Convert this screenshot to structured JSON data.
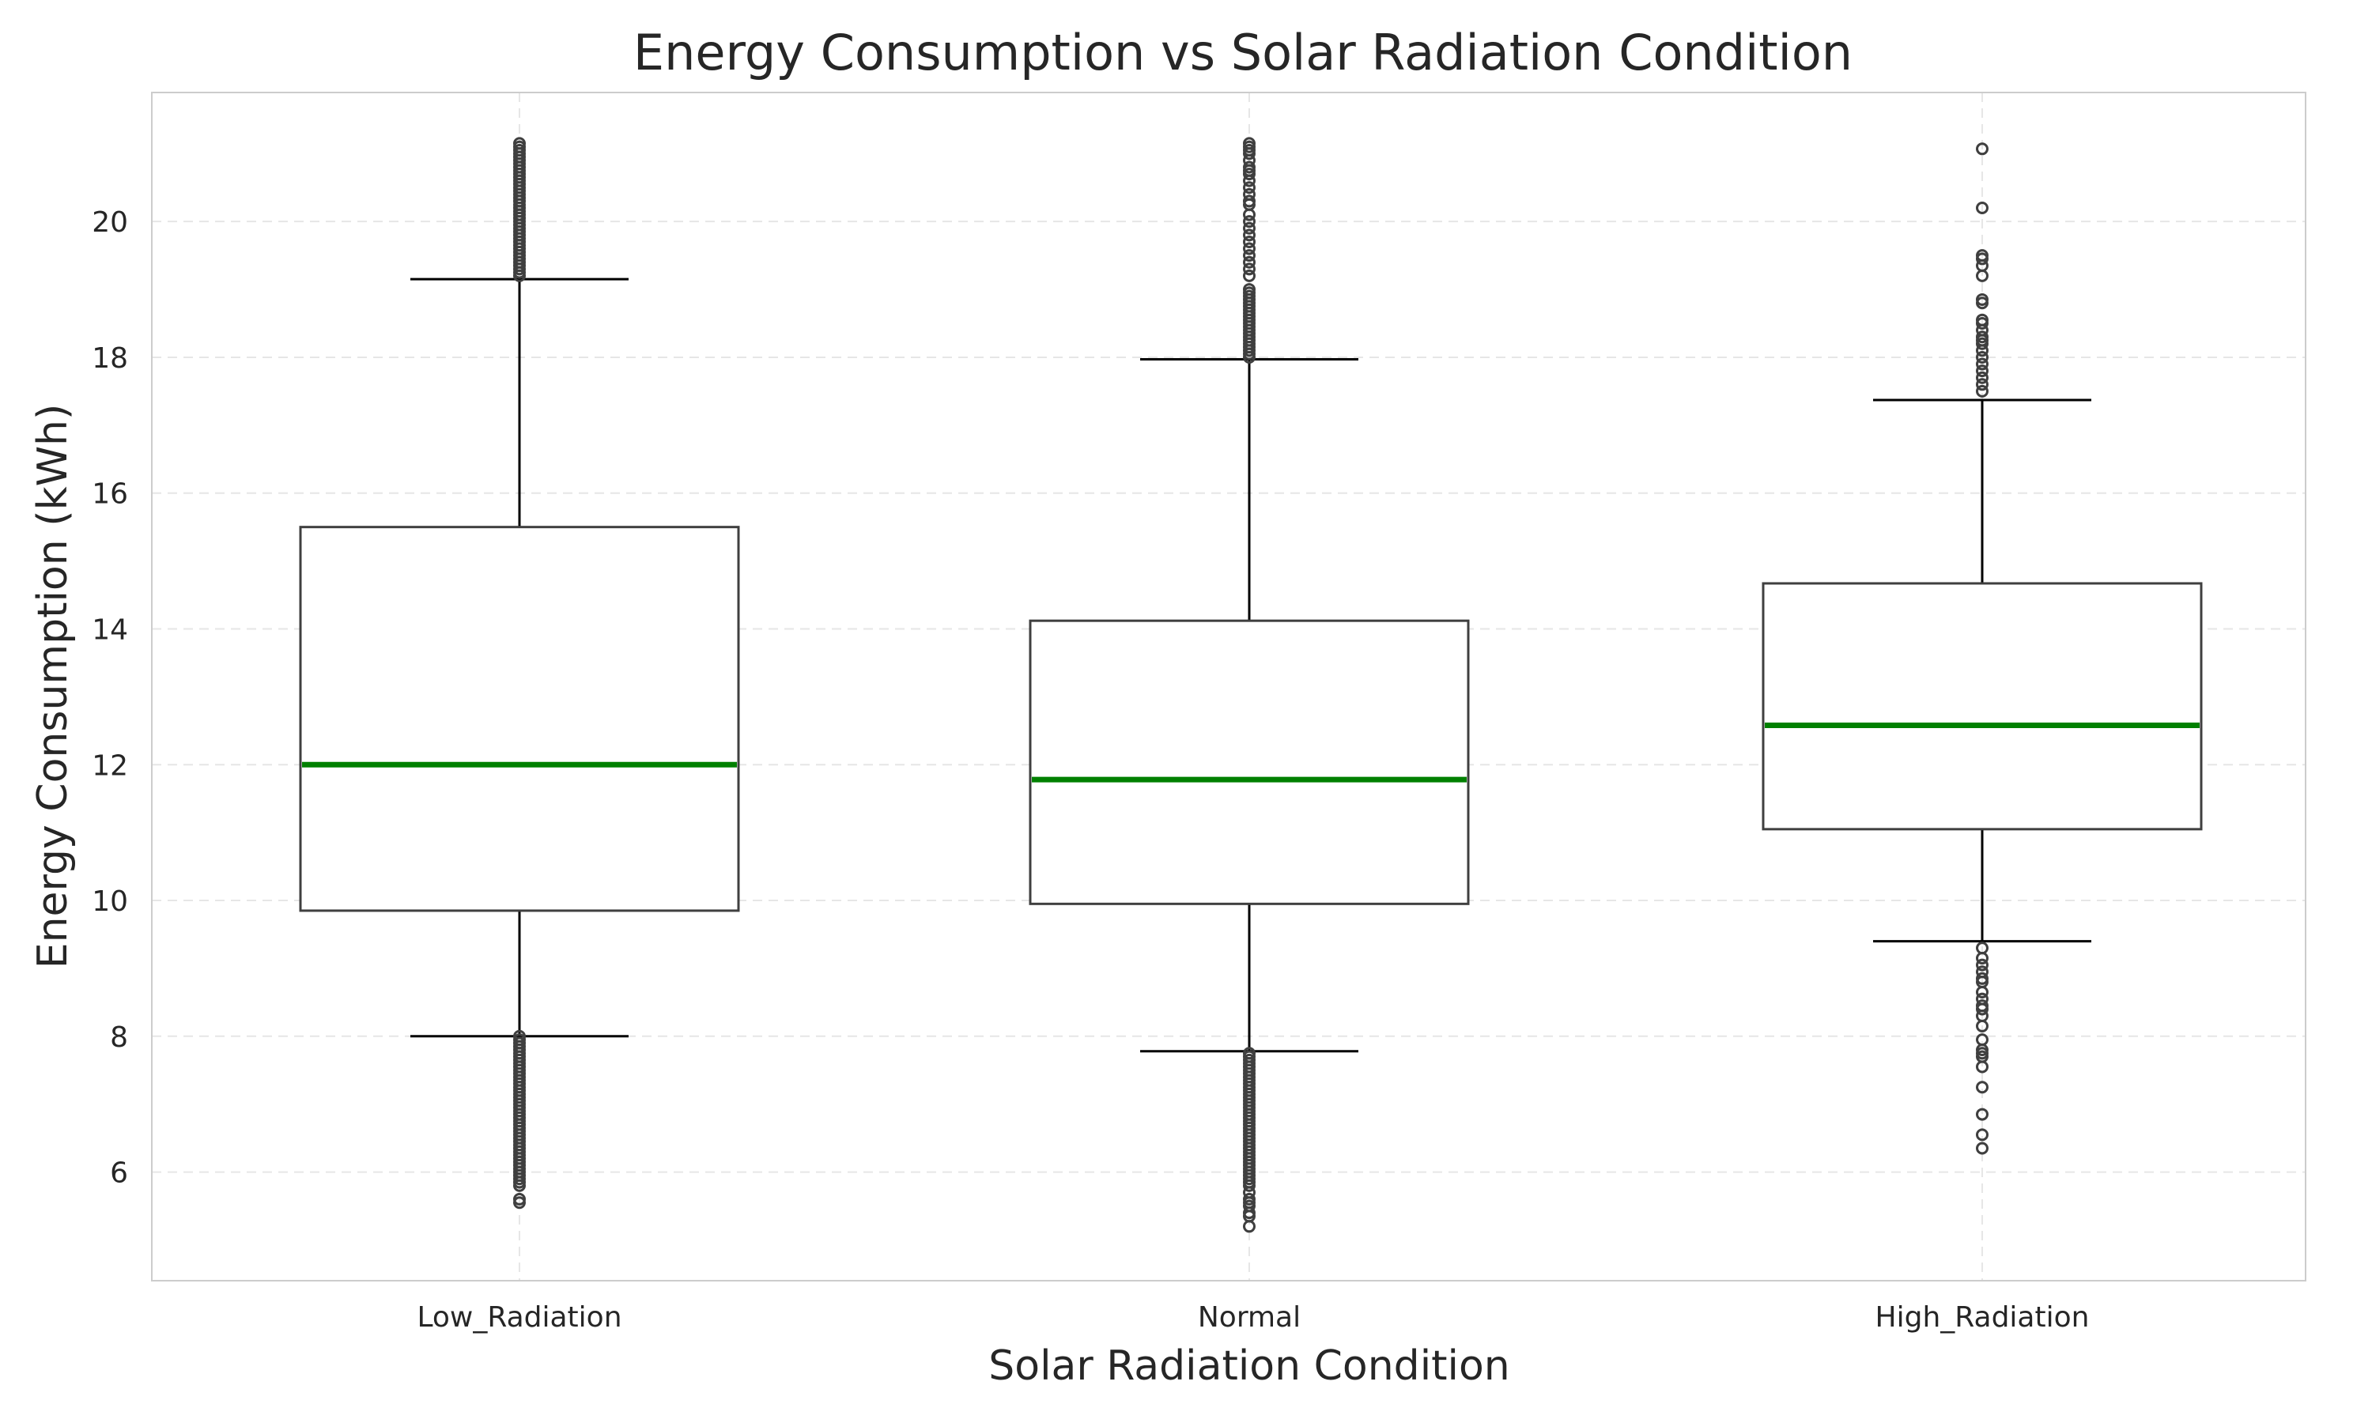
{
  "chart_data": {
    "type": "box",
    "title": "Energy Consumption vs Solar Radiation Condition",
    "xlabel": "Solar Radiation Condition",
    "ylabel": "Energy Consumption (kWh)",
    "ylim": [
      4.4,
      21.9
    ],
    "yticks": [
      6,
      8,
      10,
      12,
      14,
      16,
      18,
      20
    ],
    "grid": true,
    "colors": {
      "median": "#008000",
      "box_edge": "#3f3f3f",
      "whisker": "#000000",
      "grid": "#e6e6e6",
      "frame": "#cccccc"
    },
    "categories": [
      "Low_Radiation",
      "Normal",
      "High_Radiation"
    ],
    "boxes": [
      {
        "category": "Low_Radiation",
        "whisker_low": 8.0,
        "q1": 9.85,
        "median": 12.0,
        "q3": 15.5,
        "whisker_high": 19.15,
        "outliers_low": [
          8.0,
          7.95,
          7.9,
          7.85,
          7.8,
          7.75,
          7.7,
          7.65,
          7.6,
          7.55,
          7.5,
          7.45,
          7.4,
          7.35,
          7.3,
          7.25,
          7.2,
          7.15,
          7.1,
          7.05,
          7.0,
          6.95,
          6.9,
          6.85,
          6.8,
          6.75,
          6.7,
          6.65,
          6.6,
          6.55,
          6.5,
          6.45,
          6.4,
          6.35,
          6.3,
          6.25,
          6.2,
          6.15,
          6.1,
          6.05,
          6.0,
          5.95,
          5.9,
          5.85,
          5.8,
          5.6,
          5.55
        ],
        "outliers_high": [
          19.2,
          19.25,
          19.3,
          19.35,
          19.4,
          19.45,
          19.5,
          19.55,
          19.6,
          19.65,
          19.7,
          19.75,
          19.8,
          19.85,
          19.9,
          19.95,
          20.0,
          20.05,
          20.1,
          20.15,
          20.2,
          20.25,
          20.3,
          20.35,
          20.4,
          20.45,
          20.5,
          20.55,
          20.6,
          20.65,
          20.7,
          20.75,
          20.8,
          20.85,
          20.9,
          20.95,
          21.0,
          21.05,
          21.1,
          21.15
        ]
      },
      {
        "category": "Normal",
        "whisker_low": 7.78,
        "q1": 9.95,
        "median": 11.78,
        "q3": 14.12,
        "whisker_high": 17.97,
        "outliers_low": [
          7.75,
          7.7,
          7.65,
          7.6,
          7.55,
          7.5,
          7.45,
          7.4,
          7.35,
          7.3,
          7.25,
          7.2,
          7.15,
          7.1,
          7.05,
          7.0,
          6.95,
          6.9,
          6.85,
          6.8,
          6.75,
          6.7,
          6.65,
          6.6,
          6.55,
          6.5,
          6.45,
          6.4,
          6.35,
          6.3,
          6.25,
          6.2,
          6.15,
          6.1,
          6.05,
          6.0,
          5.95,
          5.9,
          5.85,
          5.8,
          5.7,
          5.6,
          5.55,
          5.5,
          5.4,
          5.35,
          5.2
        ],
        "outliers_high": [
          18.0,
          18.05,
          18.1,
          18.15,
          18.2,
          18.25,
          18.3,
          18.35,
          18.4,
          18.45,
          18.5,
          18.55,
          18.6,
          18.65,
          18.7,
          18.75,
          18.8,
          18.85,
          18.9,
          18.95,
          19.0,
          19.2,
          19.3,
          19.4,
          19.5,
          19.6,
          19.7,
          19.8,
          19.9,
          20.0,
          20.1,
          20.25,
          20.3,
          20.4,
          20.5,
          20.6,
          20.7,
          20.75,
          20.8,
          20.9,
          21.0,
          21.05,
          21.1,
          21.15
        ]
      },
      {
        "category": "High_Radiation",
        "whisker_low": 9.4,
        "q1": 11.05,
        "median": 12.58,
        "q3": 14.67,
        "whisker_high": 17.37,
        "outliers_low": [
          9.3,
          9.15,
          9.05,
          8.95,
          8.85,
          8.8,
          8.65,
          8.55,
          8.45,
          8.4,
          8.3,
          8.15,
          7.95,
          7.8,
          7.75,
          7.7,
          7.55,
          7.25,
          6.85,
          6.55,
          6.35
        ],
        "outliers_high": [
          17.5,
          17.6,
          17.7,
          17.8,
          17.9,
          18.0,
          18.1,
          18.2,
          18.25,
          18.3,
          18.4,
          18.5,
          18.55,
          18.8,
          18.85,
          19.2,
          19.35,
          19.45,
          19.5,
          20.2,
          21.07
        ]
      }
    ]
  }
}
